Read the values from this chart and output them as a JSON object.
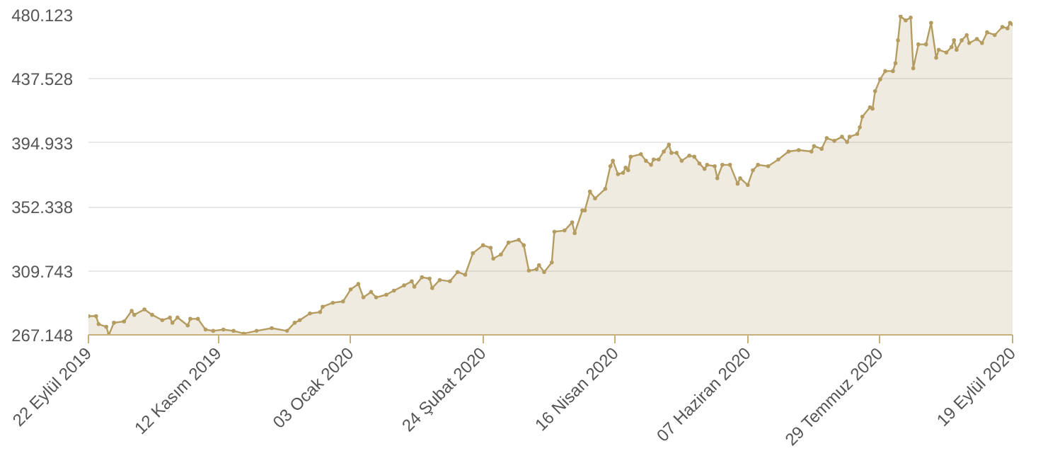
{
  "chart_data": {
    "type": "area",
    "marker": "circle",
    "line_style": "solid",
    "grid": "y",
    "xlim": [
      "2019-09-22",
      "2020-09-19"
    ],
    "xticks": [
      {
        "value": "2019-09-22",
        "label": "22 Eylül 2019"
      },
      {
        "value": "2019-11-12",
        "label": "12 Kasım 2019"
      },
      {
        "value": "2020-01-03",
        "label": "03 Ocak 2020"
      },
      {
        "value": "2020-02-24",
        "label": "24 Şubat 2020"
      },
      {
        "value": "2020-04-16",
        "label": "16 Nisan 2020"
      },
      {
        "value": "2020-06-07",
        "label": "07 Haziran 2020"
      },
      {
        "value": "2020-07-29",
        "label": "29 Temmuz 2020"
      },
      {
        "value": "2020-09-19",
        "label": "19 Eylül 2020"
      }
    ],
    "ylim": [
      267.148,
      480.123
    ],
    "yticks": [
      {
        "value": 267.148,
        "label": "267.148"
      },
      {
        "value": 309.743,
        "label": "309.743"
      },
      {
        "value": 352.338,
        "label": "352.338"
      },
      {
        "value": 394.933,
        "label": "394.933"
      },
      {
        "value": 437.528,
        "label": "437.528"
      },
      {
        "value": 480.123,
        "label": "480.123"
      }
    ],
    "series": [
      {
        "color": "#b59d62",
        "x": [
          "2019-09-22",
          "2019-09-25",
          "2019-09-26",
          "2019-09-29",
          "2019-09-30",
          "2019-10-02",
          "2019-10-06",
          "2019-10-09",
          "2019-10-10",
          "2019-10-14",
          "2019-10-17",
          "2019-10-21",
          "2019-10-24",
          "2019-10-25",
          "2019-10-27",
          "2019-10-31",
          "2019-11-01",
          "2019-11-04",
          "2019-11-07",
          "2019-11-10",
          "2019-11-14",
          "2019-11-18",
          "2019-11-22",
          "2019-11-27",
          "2019-12-03",
          "2019-12-09",
          "2019-12-12",
          "2019-12-14",
          "2019-12-18",
          "2019-12-22",
          "2019-12-23",
          "2019-12-27",
          "2019-12-31",
          "2020-01-03",
          "2020-01-06",
          "2020-01-08",
          "2020-01-11",
          "2020-01-13",
          "2020-01-17",
          "2020-01-20",
          "2020-01-24",
          "2020-01-27",
          "2020-01-28",
          "2020-01-31",
          "2020-02-03",
          "2020-02-04",
          "2020-02-07",
          "2020-02-11",
          "2020-02-14",
          "2020-02-17",
          "2020-02-20",
          "2020-02-24",
          "2020-02-27",
          "2020-02-28",
          "2020-03-02",
          "2020-03-05",
          "2020-03-09",
          "2020-03-11",
          "2020-03-13",
          "2020-03-16",
          "2020-03-17",
          "2020-03-19",
          "2020-03-22",
          "2020-03-23",
          "2020-03-27",
          "2020-03-30",
          "2020-03-31",
          "2020-04-03",
          "2020-04-04",
          "2020-04-06",
          "2020-04-08",
          "2020-04-12",
          "2020-04-14",
          "2020-04-15",
          "2020-04-17",
          "2020-04-19",
          "2020-04-20",
          "2020-04-21",
          "2020-04-22",
          "2020-04-26",
          "2020-04-28",
          "2020-04-30",
          "2020-05-01",
          "2020-05-03",
          "2020-05-05",
          "2020-05-07",
          "2020-05-08",
          "2020-05-10",
          "2020-05-12",
          "2020-05-15",
          "2020-05-17",
          "2020-05-19",
          "2020-05-21",
          "2020-05-22",
          "2020-05-25",
          "2020-05-26",
          "2020-05-28",
          "2020-05-31",
          "2020-06-03",
          "2020-06-04",
          "2020-06-07",
          "2020-06-09",
          "2020-06-11",
          "2020-06-15",
          "2020-06-19",
          "2020-06-23",
          "2020-06-27",
          "2020-07-02",
          "2020-07-03",
          "2020-07-06",
          "2020-07-08",
          "2020-07-11",
          "2020-07-14",
          "2020-07-16",
          "2020-07-17",
          "2020-07-20",
          "2020-07-21",
          "2020-07-22",
          "2020-07-25",
          "2020-07-26",
          "2020-07-27",
          "2020-07-29",
          "2020-07-31",
          "2020-08-03",
          "2020-08-04",
          "2020-08-05",
          "2020-08-06",
          "2020-08-08",
          "2020-08-10",
          "2020-08-11",
          "2020-08-13",
          "2020-08-16",
          "2020-08-18",
          "2020-08-20",
          "2020-08-21",
          "2020-08-24",
          "2020-08-26",
          "2020-08-27",
          "2020-08-28",
          "2020-08-30",
          "2020-09-01",
          "2020-09-02",
          "2020-09-05",
          "2020-09-07",
          "2020-09-09",
          "2020-09-12",
          "2020-09-15",
          "2020-09-17",
          "2020-09-18",
          "2020-09-19"
        ],
        "values": [
          279.6,
          279.6,
          274.3,
          272.5,
          267.2,
          275.2,
          276.1,
          283.2,
          280.5,
          284.1,
          280.5,
          276.9,
          278.7,
          275.2,
          278.7,
          273.4,
          277.8,
          277.8,
          270.7,
          269.8,
          270.7,
          269.8,
          268.0,
          269.8,
          271.6,
          269.8,
          275.2,
          276.9,
          281.4,
          282.3,
          285.9,
          288.5,
          289.4,
          297.4,
          301.0,
          292.1,
          295.7,
          292.1,
          293.9,
          296.6,
          300.1,
          302.8,
          299.2,
          305.5,
          304.6,
          298.3,
          303.7,
          302.8,
          309.0,
          307.2,
          321.5,
          326.8,
          325.1,
          317.9,
          320.6,
          328.6,
          330.4,
          326.8,
          309.9,
          310.8,
          313.5,
          309.0,
          315.3,
          335.8,
          336.6,
          342.0,
          334.9,
          350.0,
          350.0,
          362.5,
          358.0,
          364.3,
          379.4,
          383.0,
          374.1,
          375.0,
          378.5,
          376.7,
          385.7,
          387.4,
          383.0,
          380.3,
          383.9,
          383.9,
          389.2,
          393.7,
          388.3,
          388.3,
          383.0,
          386.5,
          385.7,
          381.2,
          377.6,
          380.3,
          379.4,
          371.4,
          380.3,
          380.3,
          367.8,
          371.4,
          366.9,
          376.7,
          380.3,
          379.4,
          383.9,
          389.2,
          390.1,
          389.2,
          392.8,
          391.0,
          398.1,
          396.3,
          399.0,
          395.5,
          399.0,
          400.8,
          405.3,
          412.4,
          418.6,
          417.7,
          429.3,
          437.3,
          442.7,
          442.7,
          448.0,
          463.2,
          479.2,
          476.5,
          478.3,
          444.5,
          460.5,
          460.5,
          474.8,
          451.6,
          456.9,
          455.1,
          458.7,
          463.2,
          456.9,
          463.2,
          466.7,
          461.4,
          464.1,
          461.4,
          468.5,
          466.7,
          472.1,
          471.2,
          474.8,
          473.9
        ]
      }
    ]
  }
}
